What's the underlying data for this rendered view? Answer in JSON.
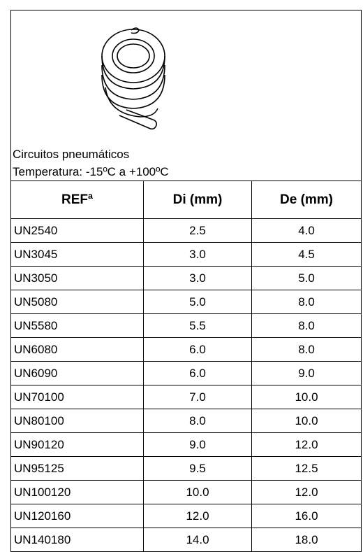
{
  "header": {
    "lines": [
      "Circuitos pneumáticos",
      "Temperatura:  -15ºC a +100ºC"
    ]
  },
  "table": {
    "columns": [
      "REFª",
      "Di (mm)",
      "De (mm)"
    ],
    "rows": [
      [
        "UN2540",
        "2.5",
        "4.0"
      ],
      [
        "UN3045",
        "3.0",
        "4.5"
      ],
      [
        "UN3050",
        "3.0",
        "5.0"
      ],
      [
        "UN5080",
        "5.0",
        "8.0"
      ],
      [
        "UN5580",
        "5.5",
        "8.0"
      ],
      [
        "UN6080",
        "6.0",
        "8.0"
      ],
      [
        "UN6090",
        "6.0",
        "9.0"
      ],
      [
        "UN70100",
        "7.0",
        "10.0"
      ],
      [
        "UN80100",
        "8.0",
        "10.0"
      ],
      [
        "UN90120",
        "9.0",
        "12.0"
      ],
      [
        "UN95125",
        "9.5",
        "12.5"
      ],
      [
        "UN100120",
        "10.0",
        "12.0"
      ],
      [
        "UN120160",
        "12.0",
        "16.0"
      ],
      [
        "UN140180",
        "14.0",
        "18.0"
      ]
    ]
  }
}
